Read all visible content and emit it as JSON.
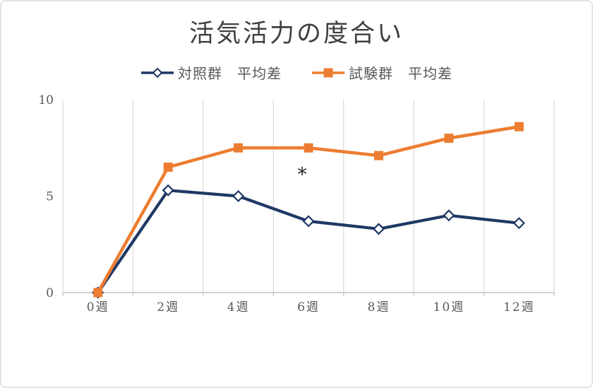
{
  "chart_data": {
    "type": "line",
    "title": "活気活力の度合い",
    "categories": [
      "0週",
      "2週",
      "4週",
      "6週",
      "8週",
      "10週",
      "12週"
    ],
    "series": [
      {
        "name": "対照群　平均差",
        "values": [
          0,
          5.3,
          5.0,
          3.7,
          3.3,
          4.0,
          3.6
        ],
        "color": "#1F3864",
        "marker": "diamond-open",
        "line_width": 4.2
      },
      {
        "name": "試験群　平均差",
        "values": [
          0,
          6.5,
          7.5,
          7.5,
          7.1,
          8.0,
          8.6
        ],
        "color": "#ED7D31",
        "marker": "square-filled",
        "line_width": 4.5
      }
    ],
    "xlabel": "",
    "ylabel": "",
    "ylim": [
      0,
      10
    ],
    "yticks": [
      0,
      5,
      10
    ],
    "grid": "vertical-only",
    "legend_position": "top-center",
    "annotation": {
      "text": "*",
      "category_index": 3,
      "value": 6.3,
      "dx": -9
    },
    "colors": {
      "title_text": "#404040",
      "axis_text": "#595959",
      "gridline": "#D9D9D9",
      "axis_line": "#C2C2C2",
      "annotation_text": "#262626"
    }
  }
}
